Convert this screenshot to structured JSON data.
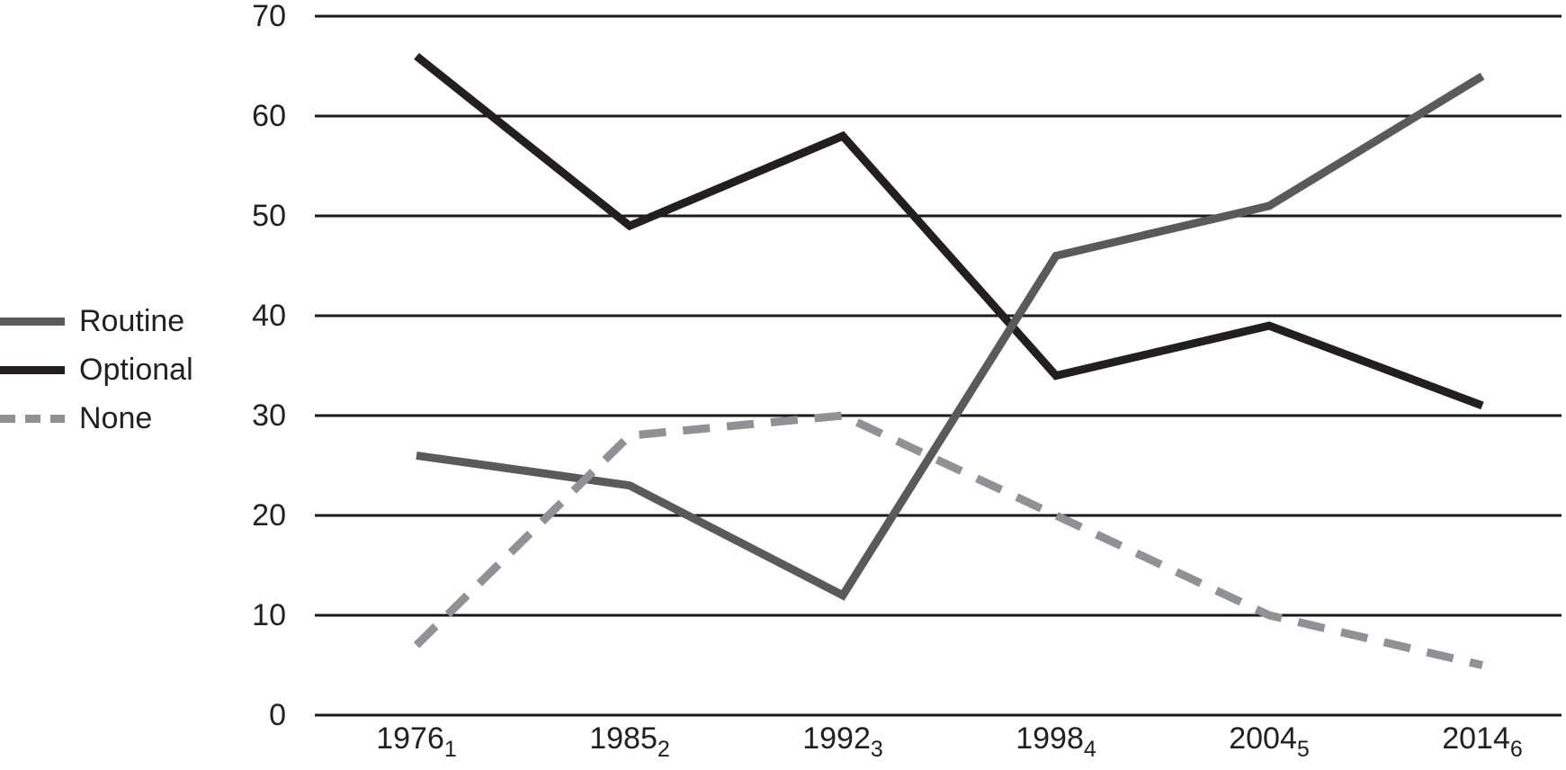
{
  "legend": {
    "items": [
      {
        "label": "Routine",
        "line_style": "solid",
        "color": "#595a5c"
      },
      {
        "label": "Optional",
        "line_style": "solid",
        "color": "#231f20"
      },
      {
        "label": "None",
        "line_style": "dashed",
        "color": "#8f9194"
      }
    ]
  },
  "chart_data": {
    "type": "line",
    "title": "",
    "xlabel": "",
    "ylabel": "",
    "categories": [
      {
        "year": "1976",
        "subscript": "1"
      },
      {
        "year": "1985",
        "subscript": "2"
      },
      {
        "year": "1992",
        "subscript": "3"
      },
      {
        "year": "1998",
        "subscript": "4"
      },
      {
        "year": "2004",
        "subscript": "5"
      },
      {
        "year": "2014",
        "subscript": "6"
      }
    ],
    "series": [
      {
        "name": "Optional",
        "values": [
          66,
          49,
          58,
          34,
          39,
          31
        ],
        "color": "#231f20",
        "style": "solid"
      },
      {
        "name": "Routine",
        "values": [
          26,
          23,
          12,
          46,
          51,
          64
        ],
        "color": "#595a5c",
        "style": "solid"
      },
      {
        "name": "None",
        "values": [
          7,
          28,
          30,
          20,
          10,
          5
        ],
        "color": "#8f9194",
        "style": "dashed"
      }
    ],
    "yticks": [
      0,
      10,
      20,
      30,
      40,
      50,
      60,
      70
    ],
    "ylim": [
      0,
      70
    ],
    "grid": true,
    "gridline_color": "#1a1a1a",
    "legend_position": "left"
  }
}
